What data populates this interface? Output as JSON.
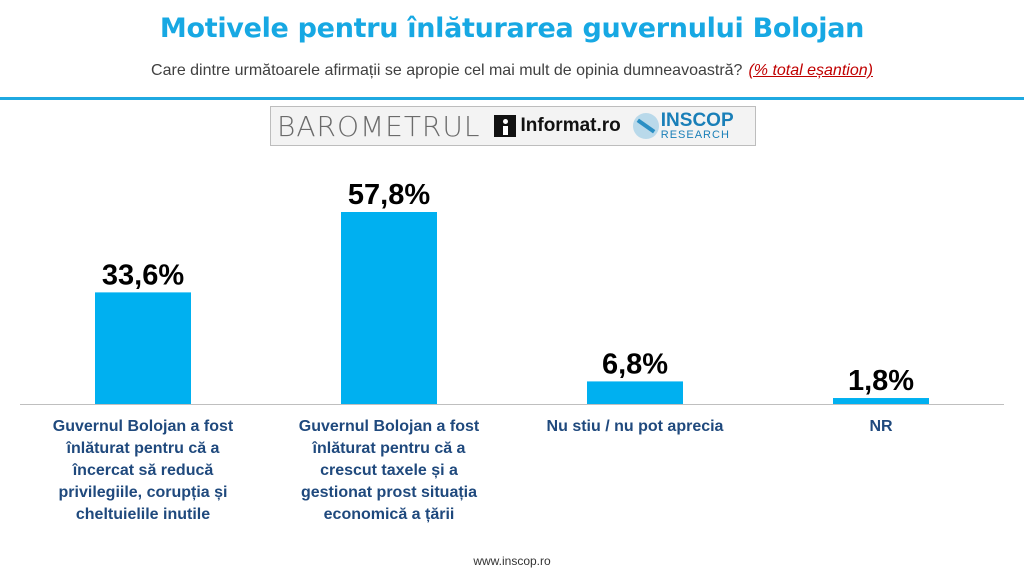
{
  "header": {
    "title": "Motivele pentru înlăturarea guvernului Bolojan",
    "subtitle": "Care dintre următoarele afirmații se apropie cel mai mult de opinia dumneavoastră?",
    "subtitle_note": "(% total eșantion)"
  },
  "banner": {
    "barometrul": "BAROMETRUL",
    "informat": "Informat.ro",
    "inscop": "INSCOP",
    "inscop_sub": "RESEARCH"
  },
  "chart_data": {
    "type": "bar",
    "title": "Motivele pentru înlăturarea guvernului Bolojan",
    "categories": [
      "Guvernul Bolojan a fost înlăturat pentru că a încercat să reducă privilegiile, corupția și cheltuielile inutile",
      "Guvernul Bolojan a fost înlăturat pentru că a crescut taxele și a gestionat prost situația economică a țării",
      "Nu stiu / nu pot aprecia",
      "NR"
    ],
    "values": [
      33.6,
      57.8,
      6.8,
      1.8
    ],
    "value_labels": [
      "33,6%",
      "57,8%",
      "6,8%",
      "1,8%"
    ],
    "ylim": [
      0,
      57.8
    ],
    "grid": false,
    "legend": "none",
    "bar_color": "#00b0f0"
  },
  "footer": {
    "url": "www.inscop.ro"
  },
  "colors": {
    "title": "#17a8e3",
    "category_label": "#1f497d",
    "note": "#c00000"
  }
}
